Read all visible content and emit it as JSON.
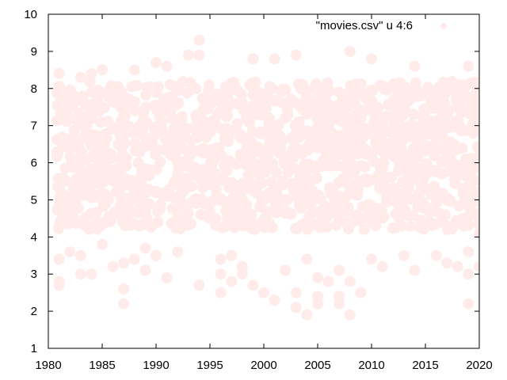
{
  "chart_data": {
    "type": "scatter",
    "legend": {
      "label": "\"movies.csv\" u 4:6",
      "placement": "top-right"
    },
    "xlim": [
      1980,
      2020
    ],
    "ylim": [
      1,
      10
    ],
    "x_ticks": [
      1980,
      1985,
      1990,
      1995,
      2000,
      2005,
      2010,
      2015,
      2020
    ],
    "y_ticks": [
      1,
      2,
      3,
      4,
      5,
      6,
      7,
      8,
      9,
      10
    ],
    "grid": false,
    "colors": {
      "points": "#ffecea",
      "axes": "#000000",
      "background": "#ffffff"
    },
    "series": [
      {
        "points": [
          [
            1981,
            8.4
          ],
          [
            1981,
            3.4
          ],
          [
            1981,
            2.8
          ],
          [
            1981,
            2.7
          ],
          [
            1981,
            4.3
          ],
          [
            1982,
            4.5
          ],
          [
            1982,
            3.6
          ],
          [
            1983,
            3.0
          ],
          [
            1983,
            8.3
          ],
          [
            1983,
            3.5
          ],
          [
            1984,
            3.0
          ],
          [
            1984,
            8.4
          ],
          [
            1985,
            8.5
          ],
          [
            1985,
            3.8
          ],
          [
            1986,
            3.2
          ],
          [
            1987,
            2.6
          ],
          [
            1987,
            2.2
          ],
          [
            1987,
            3.3
          ],
          [
            1988,
            8.5
          ],
          [
            1988,
            3.4
          ],
          [
            1989,
            3.1
          ],
          [
            1989,
            3.7
          ],
          [
            1990,
            8.7
          ],
          [
            1990,
            3.5
          ],
          [
            1991,
            2.9
          ],
          [
            1991,
            8.6
          ],
          [
            1992,
            3.6
          ],
          [
            1993,
            8.9
          ],
          [
            1994,
            9.3
          ],
          [
            1994,
            2.7
          ],
          [
            1994,
            8.9
          ],
          [
            1996,
            2.5
          ],
          [
            1996,
            3.0
          ],
          [
            1996,
            3.4
          ],
          [
            1997,
            2.8
          ],
          [
            1997,
            3.5
          ],
          [
            1998,
            3.0
          ],
          [
            1998,
            3.2
          ],
          [
            1999,
            8.8
          ],
          [
            1999,
            2.7
          ],
          [
            2000,
            2.5
          ],
          [
            2001,
            2.3
          ],
          [
            2001,
            8.8
          ],
          [
            2002,
            3.1
          ],
          [
            2003,
            8.9
          ],
          [
            2003,
            2.1
          ],
          [
            2003,
            2.5
          ],
          [
            2004,
            1.9
          ],
          [
            2004,
            3.4
          ],
          [
            2005,
            2.2
          ],
          [
            2005,
            2.4
          ],
          [
            2005,
            2.9
          ],
          [
            2006,
            2.8
          ],
          [
            2007,
            2.4
          ],
          [
            2007,
            2.2
          ],
          [
            2007,
            3.1
          ],
          [
            2008,
            9.0
          ],
          [
            2008,
            1.9
          ],
          [
            2008,
            2.8
          ],
          [
            2009,
            2.5
          ],
          [
            2010,
            8.8
          ],
          [
            2010,
            3.4
          ],
          [
            2011,
            3.2
          ],
          [
            2013,
            3.5
          ],
          [
            2014,
            8.6
          ],
          [
            2014,
            3.1
          ],
          [
            2016,
            3.5
          ],
          [
            2017,
            3.3
          ],
          [
            2018,
            3.2
          ],
          [
            2019,
            3.0
          ],
          [
            2019,
            2.2
          ],
          [
            2019,
            8.6
          ],
          [
            2019,
            3.6
          ],
          [
            2020,
            3.2
          ],
          [
            2020,
            4.1
          ]
        ]
      }
    ]
  }
}
